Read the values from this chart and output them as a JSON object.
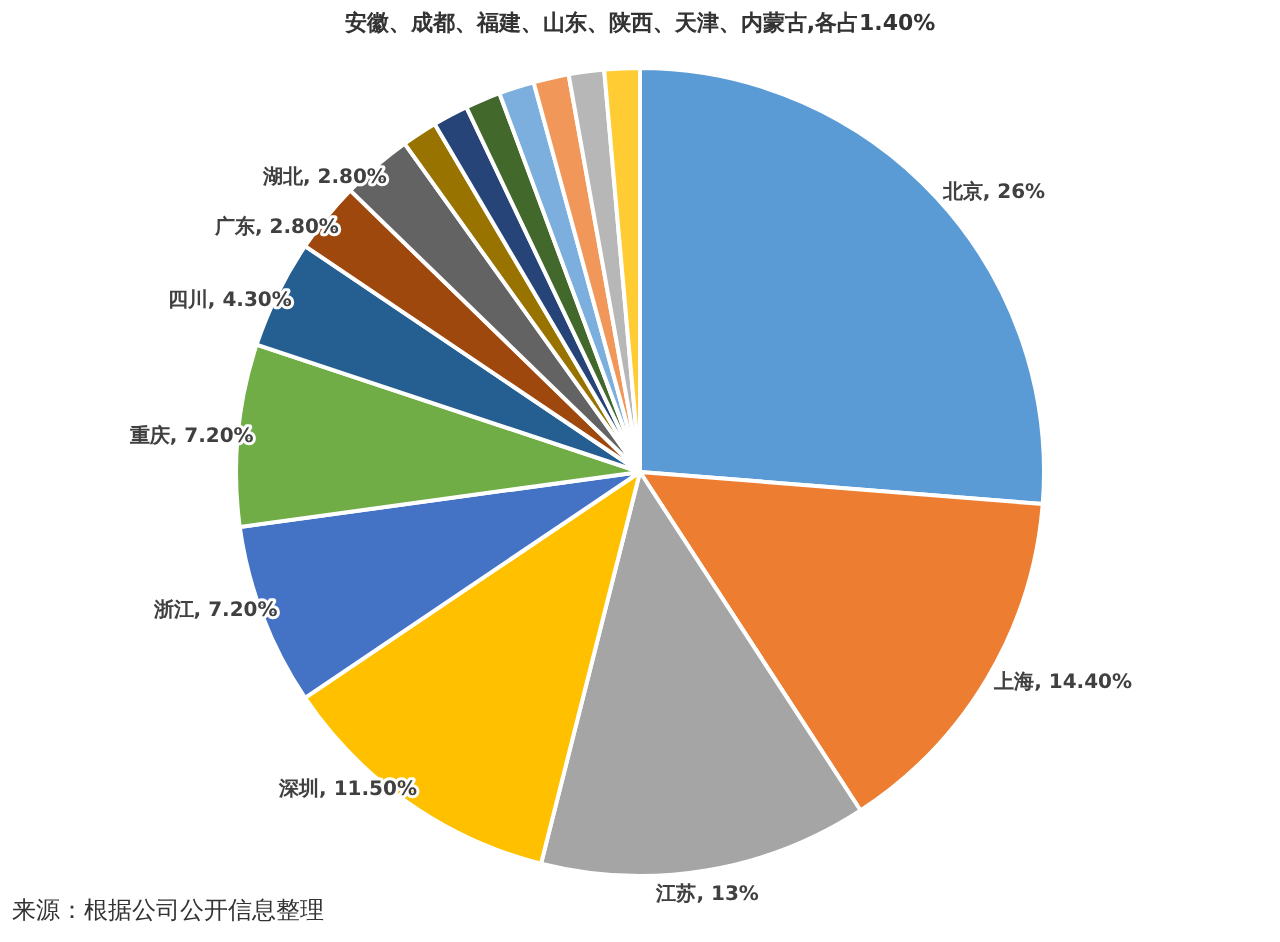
{
  "chart_data": {
    "type": "pie",
    "categories": [
      "北京",
      "上海",
      "江苏",
      "深圳",
      "浙江",
      "重庆",
      "四川",
      "广东",
      "湖北",
      null,
      null,
      null,
      null,
      null,
      null,
      null
    ],
    "values": [
      26,
      14.4,
      13,
      11.5,
      7.2,
      7.2,
      4.3,
      2.8,
      2.8,
      1.4,
      1.4,
      1.4,
      1.4,
      1.4,
      1.4,
      1.4
    ],
    "colors": [
      "#5b9bd5",
      "#ed7d31",
      "#a5a5a5",
      "#ffc000",
      "#4472c4",
      "#70ad47",
      "#255e91",
      "#9e480e",
      "#636363",
      "#997300",
      "#264478",
      "#43682b",
      "#7cafdd",
      "#f1975a",
      "#b7b7b7",
      "#ffcd33"
    ],
    "value_labels": [
      ", 26%",
      ", 14.40%",
      ", 13%",
      ", 11.50%",
      ", 7.20%",
      ", 7.20%",
      ", 4.30%",
      ", 2.80%",
      ", 2.80%",
      null,
      null,
      null,
      null,
      null,
      null,
      null
    ],
    "annotations": [
      "安徽、成都、福建、山东、陕西、天津、内蒙古,各占1.40%",
      "来源：根据公司公开信息整理"
    ]
  }
}
